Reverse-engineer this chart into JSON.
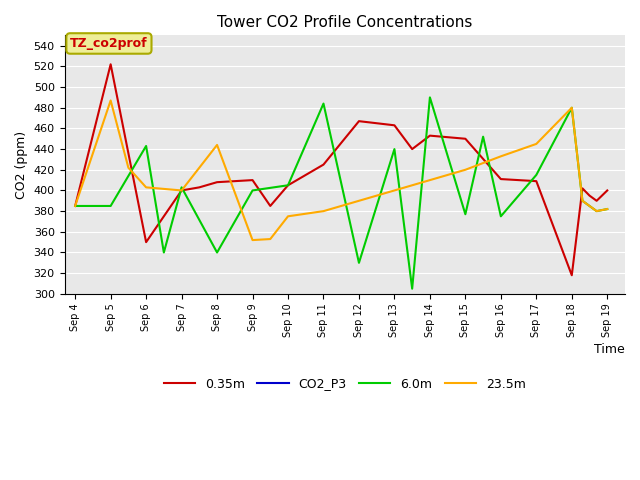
{
  "title": "Tower CO2 Profile Concentrations",
  "xlabel": "Time",
  "ylabel": "CO2 (ppm)",
  "ylim": [
    300,
    550
  ],
  "yticks": [
    300,
    320,
    340,
    360,
    380,
    400,
    420,
    440,
    460,
    480,
    500,
    520,
    540
  ],
  "background_color": "#e8e8e8",
  "annotation_label": "TZ_co2prof",
  "annotation_bg_color": "#eeee99",
  "annotation_border_color": "#aaaa00",
  "annotation_text_color": "#cc0000",
  "series": {
    "0.35m": {
      "color": "#cc0000",
      "x": [
        4,
        5,
        6,
        7,
        7.5,
        8,
        9,
        9.5,
        10,
        11,
        12,
        13,
        13.5,
        14,
        15,
        16,
        17,
        18,
        18.3,
        18.5,
        18.7,
        19
      ],
      "y": [
        385,
        522,
        350,
        400,
        403,
        408,
        410,
        385,
        405,
        425,
        467,
        463,
        440,
        453,
        450,
        411,
        409,
        318,
        402,
        395,
        390,
        400
      ]
    },
    "CO2_P3": {
      "color": "#0000cc",
      "x": [],
      "y": []
    },
    "6.0m": {
      "color": "#00cc00",
      "x": [
        4,
        5,
        6,
        6.5,
        7,
        8,
        9,
        10,
        11,
        12,
        13,
        13.5,
        14,
        15,
        15.5,
        16,
        17,
        18,
        18.3,
        18.5,
        18.7,
        19
      ],
      "y": [
        385,
        385,
        443,
        340,
        403,
        340,
        400,
        405,
        484,
        330,
        440,
        305,
        490,
        377,
        452,
        375,
        415,
        480,
        390,
        385,
        380,
        382
      ]
    },
    "23.5m": {
      "color": "#ffaa00",
      "x": [
        4,
        5,
        5.5,
        6,
        7,
        8,
        9,
        9.5,
        10,
        11,
        12,
        13,
        14,
        15,
        16,
        17,
        18,
        18.3,
        18.5,
        18.7,
        19
      ],
      "y": [
        385,
        487,
        422,
        403,
        400,
        444,
        352,
        353,
        375,
        380,
        390,
        400,
        410,
        420,
        433,
        445,
        480,
        390,
        385,
        380,
        382
      ]
    }
  },
  "xtick_positions": [
    4,
    5,
    6,
    7,
    8,
    9,
    10,
    11,
    12,
    13,
    14,
    15,
    16,
    17,
    18,
    19
  ],
  "xtick_labels": [
    "Sep 4",
    "Sep 5",
    "Sep 6",
    "Sep 7",
    "Sep 8",
    "Sep 9",
    "Sep 10",
    "Sep 11",
    "Sep 12",
    "Sep 13",
    "Sep 14",
    "Sep 15",
    "Sep 16",
    "Sep 17",
    "Sep 18",
    "Sep 19"
  ],
  "xlim": [
    3.7,
    19.5
  ]
}
